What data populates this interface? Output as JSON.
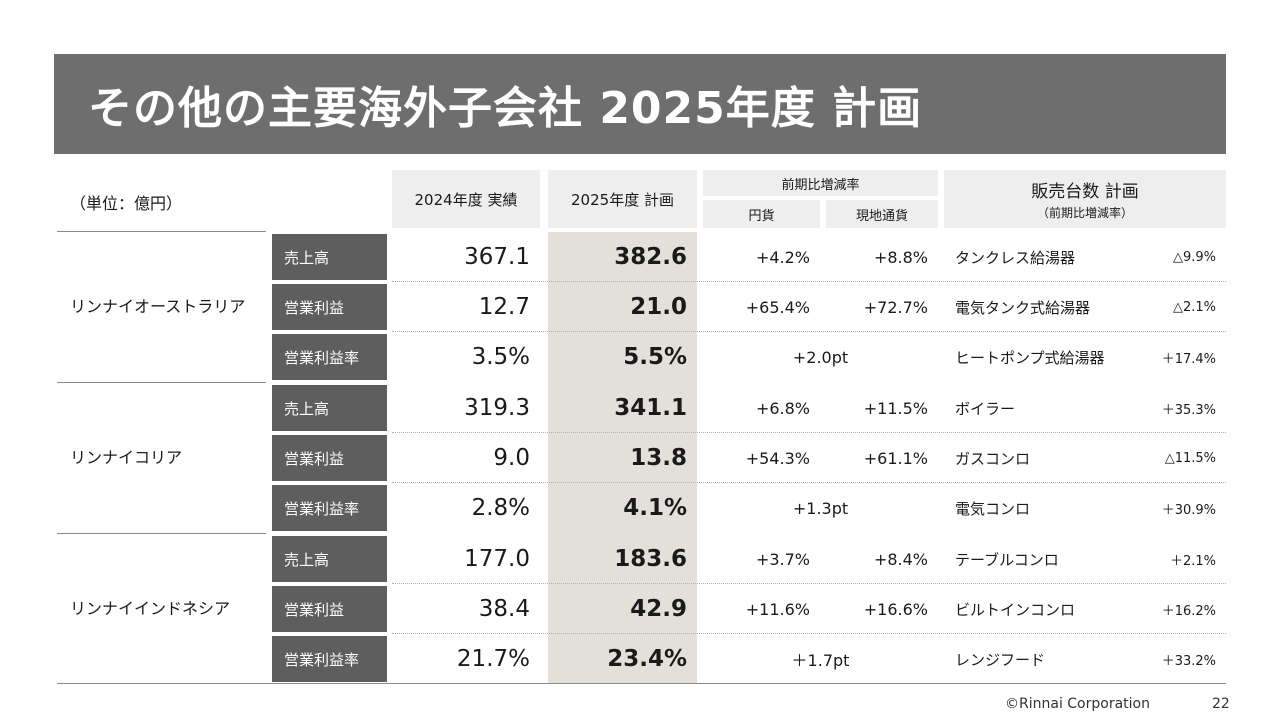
{
  "title": "その他の主要海外子会社 2025年度 計画",
  "unit": "（単位：億円）",
  "headers": {
    "fy2024": "2024年度 実績",
    "fy2025": "2025年度 計画",
    "yoy": "前期比増減率",
    "yen": "円貨",
    "local": "現地通貨",
    "units_plan": "販売台数 計画",
    "units_sub": "（前期比増減率）"
  },
  "metric_labels": {
    "sales": "売上高",
    "op": "営業利益",
    "opm": "営業利益率"
  },
  "companies": [
    {
      "name": "リンナイオーストラリア",
      "rows": [
        {
          "fy2024": "367.1",
          "fy2025": "382.6",
          "yen": "+4.2%",
          "local": "+8.8%"
        },
        {
          "fy2024": "12.7",
          "fy2025": "21.0",
          "yen": "+65.4%",
          "local": "+72.7%"
        },
        {
          "fy2024": "3.5%",
          "fy2025": "5.5%",
          "pt": "+2.0pt"
        }
      ]
    },
    {
      "name": "リンナイコリア",
      "rows": [
        {
          "fy2024": "319.3",
          "fy2025": "341.1",
          "yen": "+6.8%",
          "local": "+11.5%"
        },
        {
          "fy2024": "9.0",
          "fy2025": "13.8",
          "yen": "+54.3%",
          "local": "+61.1%"
        },
        {
          "fy2024": "2.8%",
          "fy2025": "4.1%",
          "pt": "+1.3pt"
        }
      ]
    },
    {
      "name": "リンナイインドネシア",
      "rows": [
        {
          "fy2024": "177.0",
          "fy2025": "183.6",
          "yen": "+3.7%",
          "local": "+8.4%"
        },
        {
          "fy2024": "38.4",
          "fy2025": "42.9",
          "yen": "+11.6%",
          "local": "+16.6%"
        },
        {
          "fy2024": "21.7%",
          "fy2025": "23.4%",
          "pt": "＋1.7pt"
        }
      ]
    }
  ],
  "products": [
    {
      "name": "タンクレス給湯器",
      "change": "△9.9%"
    },
    {
      "name": "電気タンク式給湯器",
      "change": "△2.1%"
    },
    {
      "name": "ヒートポンプ式給湯器",
      "change": "＋17.4%"
    },
    {
      "name": "ボイラー",
      "change": "＋35.3%"
    },
    {
      "name": "ガスコンロ",
      "change": "△11.5%"
    },
    {
      "name": "電気コンロ",
      "change": "＋30.9%"
    },
    {
      "name": "テーブルコンロ",
      "change": "＋2.1%"
    },
    {
      "name": "ビルトインコンロ",
      "change": "＋16.2%"
    },
    {
      "name": "レンジフード",
      "change": "＋33.2%"
    }
  ],
  "footer": {
    "copyright": "©Rinnai Corporation",
    "page": "22"
  }
}
